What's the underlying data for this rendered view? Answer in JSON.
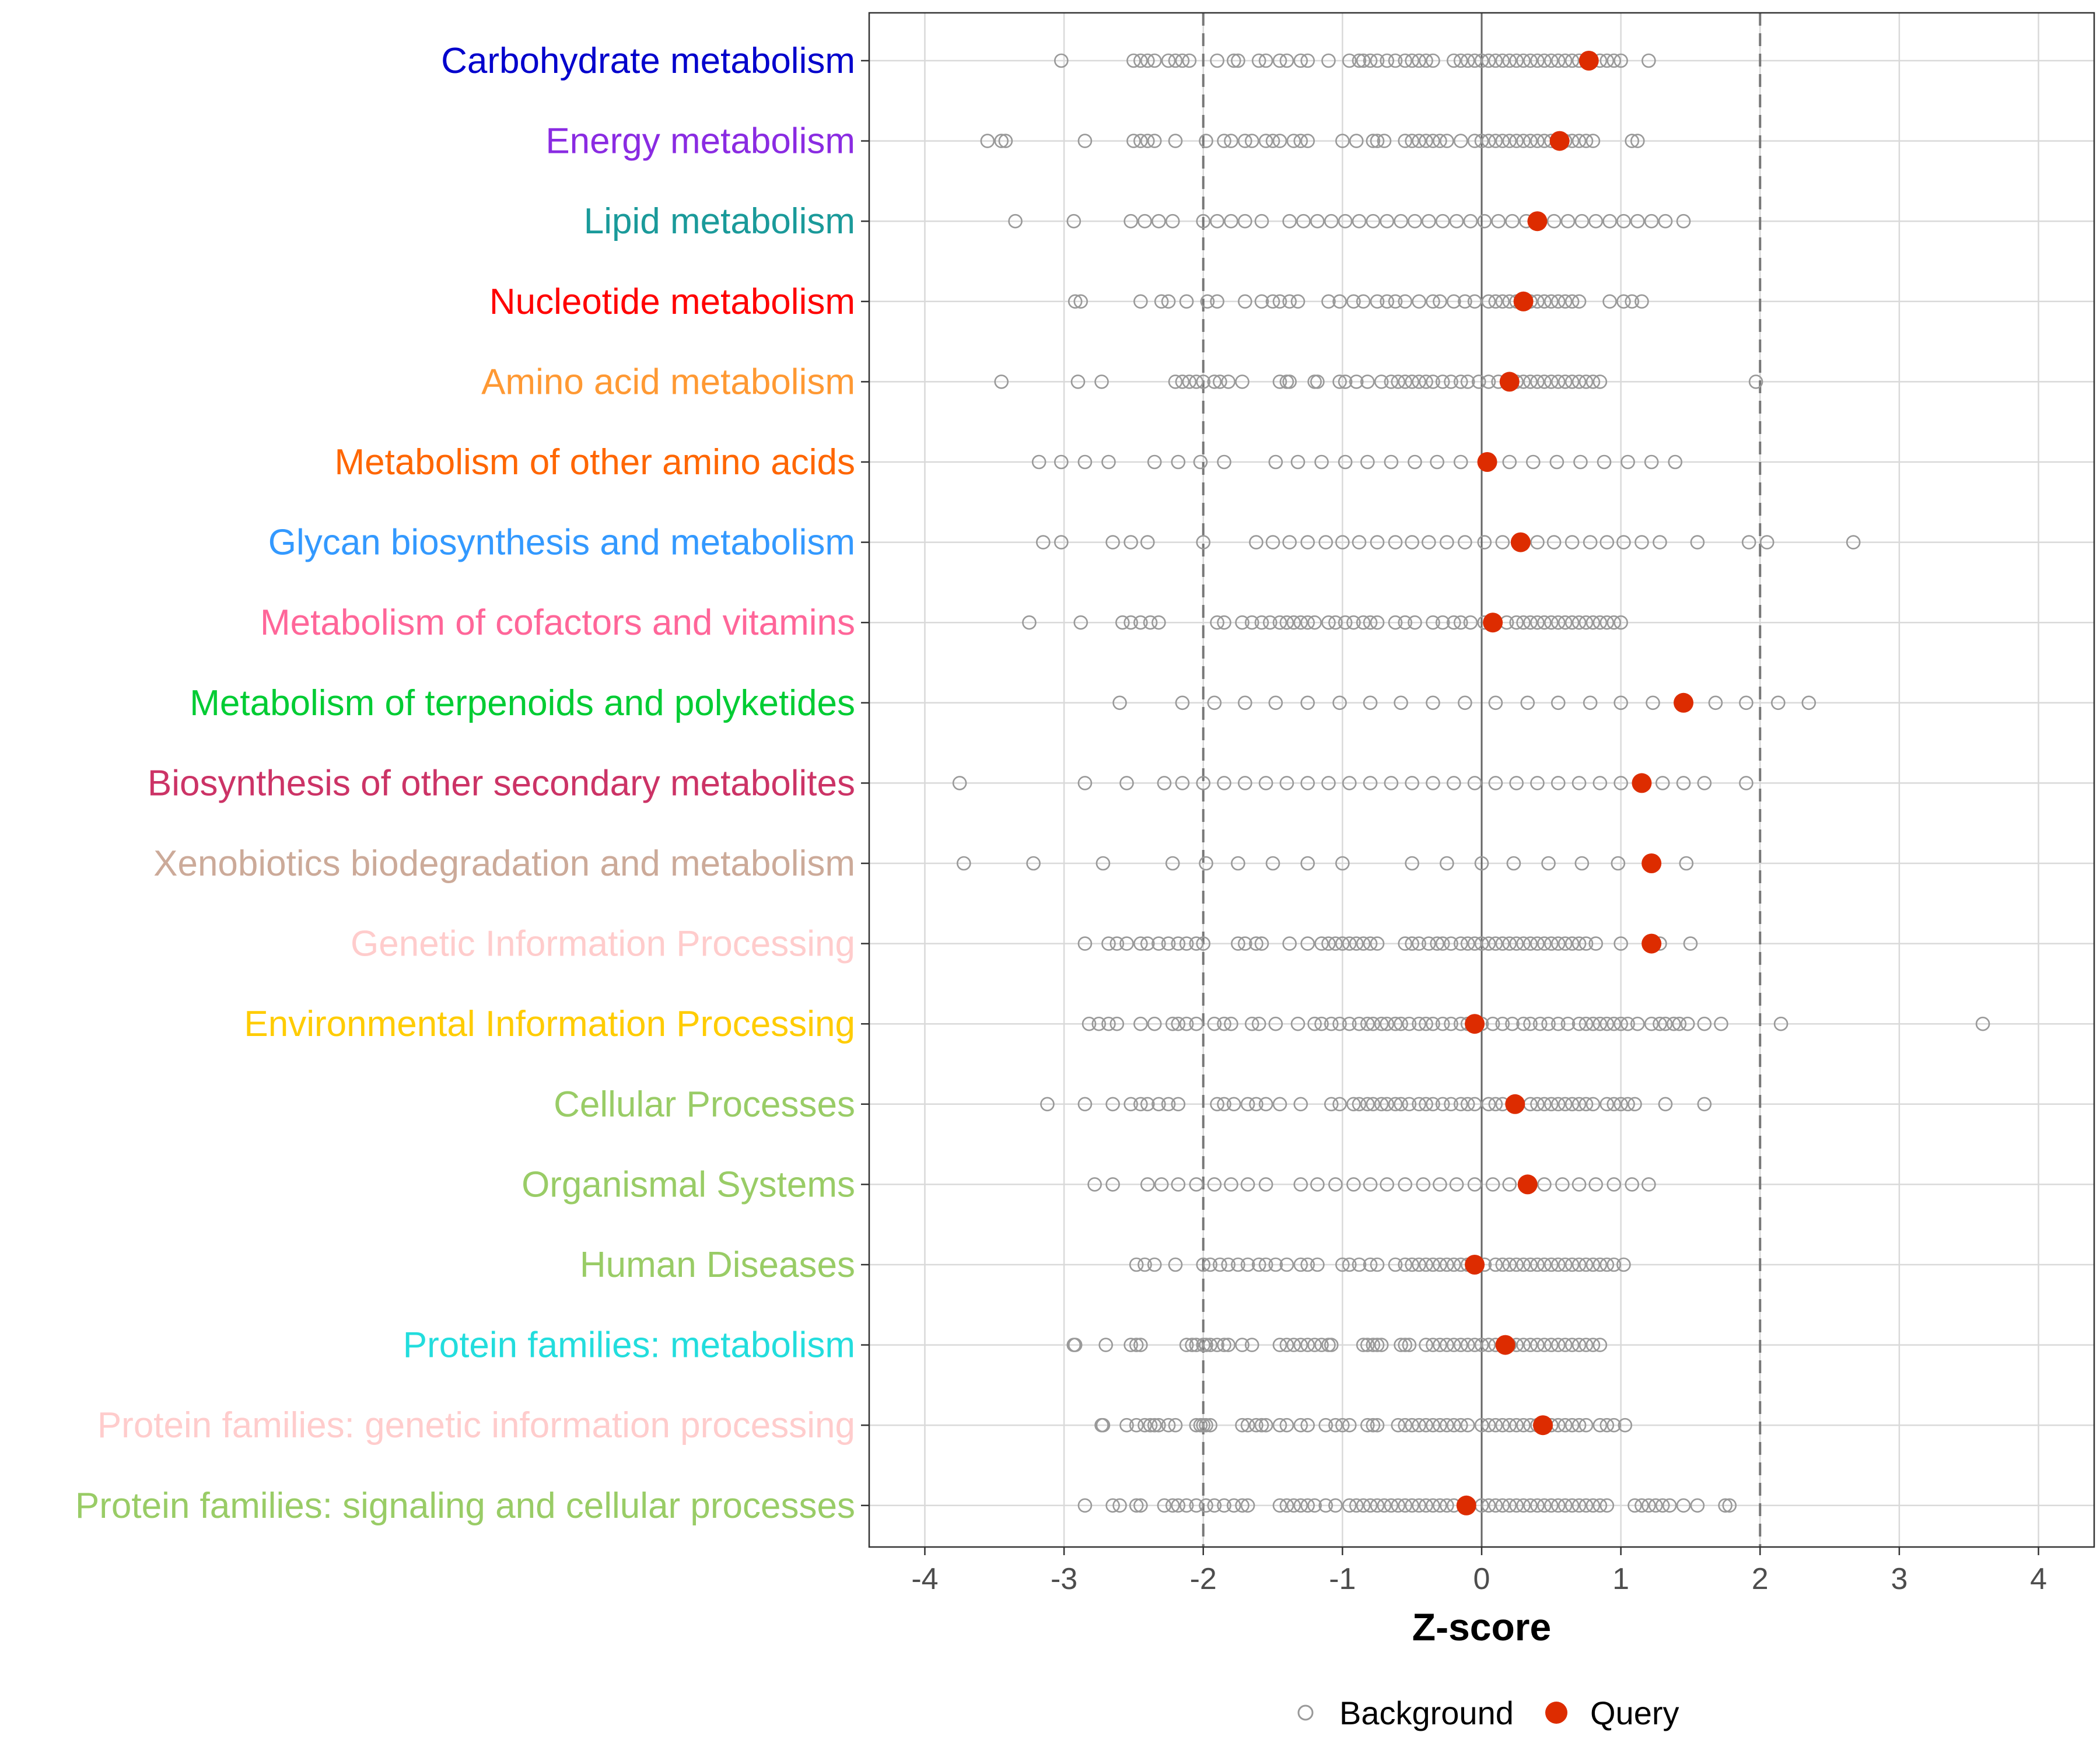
{
  "chart_data": {
    "type": "scatter",
    "title": "",
    "xlabel": "Z-score",
    "ylabel": "",
    "xlim": [
      -4.4,
      4.4
    ],
    "x_ticks": [
      -4,
      -3,
      -2,
      -1,
      0,
      1,
      2,
      3,
      4
    ],
    "x_tick_labels": [
      "-4",
      "-3",
      "-2",
      "-1",
      "0",
      "1",
      "2",
      "3",
      "4"
    ],
    "reference_lines": {
      "dashed": [
        -2,
        2
      ],
      "solid": [
        0
      ]
    },
    "grid": true,
    "legend": {
      "position": "bottom",
      "items": [
        {
          "label": "Background",
          "marker": "open-circle",
          "color": "#999999"
        },
        {
          "label": "Query",
          "marker": "filled-circle",
          "color": "#dd2c00"
        }
      ]
    },
    "categories": [
      {
        "name": "Carbohydrate metabolism",
        "color": "#0000cc",
        "query": 0.77,
        "background": [
          -3.02,
          -2.5,
          -2.45,
          -2.4,
          -2.35,
          -2.25,
          -2.2,
          -2.15,
          -2.1,
          -1.9,
          -1.78,
          -1.75,
          -1.6,
          -1.55,
          -1.45,
          -1.4,
          -1.3,
          -1.25,
          -1.1,
          -0.95,
          -0.88,
          -0.85,
          -0.8,
          -0.75,
          -0.68,
          -0.62,
          -0.55,
          -0.5,
          -0.45,
          -0.4,
          -0.35,
          -0.2,
          -0.15,
          -0.1,
          -0.05,
          0.0,
          0.05,
          0.1,
          0.15,
          0.2,
          0.25,
          0.3,
          0.35,
          0.4,
          0.45,
          0.5,
          0.55,
          0.6,
          0.65,
          0.7,
          0.85,
          0.9,
          0.95,
          1.0,
          1.2
        ]
      },
      {
        "name": "Energy metabolism",
        "color": "#8a2be2",
        "query": 0.56,
        "background": [
          -3.55,
          -3.45,
          -3.42,
          -2.85,
          -2.5,
          -2.45,
          -2.4,
          -2.35,
          -2.2,
          -1.98,
          -1.85,
          -1.8,
          -1.7,
          -1.65,
          -1.55,
          -1.5,
          -1.45,
          -1.35,
          -1.3,
          -1.25,
          -1.0,
          -0.9,
          -0.78,
          -0.75,
          -0.7,
          -0.55,
          -0.5,
          -0.45,
          -0.4,
          -0.35,
          -0.3,
          -0.25,
          -0.15,
          -0.05,
          0.0,
          0.05,
          0.1,
          0.15,
          0.2,
          0.25,
          0.3,
          0.35,
          0.4,
          0.45,
          0.5,
          0.6,
          0.65,
          0.7,
          0.75,
          0.8,
          1.08,
          1.12
        ]
      },
      {
        "name": "Lipid metabolism",
        "color": "#1a9a9a",
        "query": 0.4,
        "background": [
          -3.35,
          -2.93,
          -2.52,
          -2.42,
          -2.32,
          -2.22,
          -2.0,
          -1.9,
          -1.8,
          -1.7,
          -1.58,
          -1.38,
          -1.28,
          -1.18,
          -1.08,
          -0.98,
          -0.88,
          -0.78,
          -0.68,
          -0.58,
          -0.48,
          -0.38,
          -0.28,
          -0.18,
          -0.08,
          0.02,
          0.12,
          0.22,
          0.32,
          0.52,
          0.62,
          0.72,
          0.82,
          0.92,
          1.02,
          1.12,
          1.22,
          1.32,
          1.45
        ]
      },
      {
        "name": "Nucleotide metabolism",
        "color": "#ff0000",
        "query": 0.3,
        "background": [
          -2.92,
          -2.88,
          -2.45,
          -2.3,
          -2.25,
          -2.12,
          -1.97,
          -1.9,
          -1.7,
          -1.58,
          -1.5,
          -1.45,
          -1.38,
          -1.32,
          -1.1,
          -1.02,
          -0.92,
          -0.85,
          -0.75,
          -0.68,
          -0.62,
          -0.55,
          -0.45,
          -0.35,
          -0.3,
          -0.2,
          -0.12,
          -0.05,
          0.05,
          0.1,
          0.15,
          0.2,
          0.25,
          0.35,
          0.4,
          0.45,
          0.5,
          0.55,
          0.6,
          0.65,
          0.7,
          0.92,
          1.02,
          1.08,
          1.15
        ]
      },
      {
        "name": "Amino acid metabolism",
        "color": "#ff9933",
        "query": 0.2,
        "background": [
          -3.45,
          -2.9,
          -2.73,
          -2.2,
          -2.15,
          -2.1,
          -2.05,
          -2.0,
          -1.92,
          -1.88,
          -1.82,
          -1.72,
          -1.45,
          -1.4,
          -1.38,
          -1.2,
          -1.18,
          -1.02,
          -0.98,
          -0.9,
          -0.82,
          -0.72,
          -0.65,
          -0.6,
          -0.55,
          -0.5,
          -0.45,
          -0.4,
          -0.35,
          -0.28,
          -0.22,
          -0.15,
          -0.1,
          -0.02,
          0.05,
          0.12,
          0.25,
          0.3,
          0.35,
          0.4,
          0.45,
          0.5,
          0.55,
          0.6,
          0.65,
          0.7,
          0.75,
          0.8,
          0.85,
          1.97
        ]
      },
      {
        "name": "Metabolism of other amino acids",
        "color": "#ff6600",
        "query": 0.04,
        "background": [
          -3.18,
          -3.02,
          -2.85,
          -2.68,
          -2.35,
          -2.18,
          -2.02,
          -1.85,
          -1.48,
          -1.32,
          -1.15,
          -0.98,
          -0.82,
          -0.65,
          -0.48,
          -0.32,
          -0.15,
          0.2,
          0.37,
          0.54,
          0.71,
          0.88,
          1.05,
          1.22,
          1.39
        ]
      },
      {
        "name": "Glycan biosynthesis and metabolism",
        "color": "#3399ff",
        "query": 0.28,
        "background": [
          -3.15,
          -3.02,
          -2.65,
          -2.52,
          -2.4,
          -2.0,
          -1.62,
          -1.5,
          -1.38,
          -1.25,
          -1.12,
          -1.0,
          -0.88,
          -0.75,
          -0.62,
          -0.5,
          -0.38,
          -0.25,
          -0.12,
          0.02,
          0.15,
          0.4,
          0.52,
          0.65,
          0.78,
          0.9,
          1.02,
          1.15,
          1.28,
          1.55,
          1.92,
          2.05,
          2.67
        ]
      },
      {
        "name": "Metabolism of cofactors and vitamins",
        "color": "#ff6699",
        "query": 0.08,
        "background": [
          -3.25,
          -2.88,
          -2.58,
          -2.52,
          -2.45,
          -2.38,
          -2.32,
          -1.9,
          -1.85,
          -1.72,
          -1.65,
          -1.58,
          -1.52,
          -1.45,
          -1.4,
          -1.35,
          -1.3,
          -1.25,
          -1.2,
          -1.1,
          -1.05,
          -0.98,
          -0.92,
          -0.85,
          -0.8,
          -0.75,
          -0.62,
          -0.55,
          -0.48,
          -0.35,
          -0.28,
          -0.2,
          -0.15,
          -0.08,
          0.02,
          0.18,
          0.25,
          0.3,
          0.35,
          0.4,
          0.45,
          0.5,
          0.55,
          0.6,
          0.65,
          0.7,
          0.75,
          0.8,
          0.85,
          0.9,
          0.95,
          1.0
        ]
      },
      {
        "name": "Metabolism of terpenoids and polyketides",
        "color": "#00cc33",
        "query": 1.45,
        "background": [
          -2.6,
          -2.15,
          -1.92,
          -1.7,
          -1.48,
          -1.25,
          -1.02,
          -0.8,
          -0.58,
          -0.35,
          -0.12,
          0.1,
          0.33,
          0.55,
          0.78,
          1.0,
          1.23,
          1.68,
          1.9,
          2.13,
          2.35
        ]
      },
      {
        "name": "Biosynthesis of other secondary metabolites",
        "color": "#cc3366",
        "query": 1.15,
        "background": [
          -3.75,
          -2.85,
          -2.55,
          -2.28,
          -2.15,
          -2.0,
          -1.85,
          -1.7,
          -1.55,
          -1.4,
          -1.25,
          -1.1,
          -0.95,
          -0.8,
          -0.65,
          -0.5,
          -0.35,
          -0.2,
          -0.05,
          0.1,
          0.25,
          0.4,
          0.55,
          0.7,
          0.85,
          1.0,
          1.3,
          1.45,
          1.6,
          1.9
        ]
      },
      {
        "name": "Xenobiotics biodegradation and metabolism",
        "color": "#ccaa99",
        "query": 1.22,
        "background": [
          -3.72,
          -3.22,
          -2.72,
          -2.22,
          -1.98,
          -1.75,
          -1.5,
          -1.25,
          -1.0,
          -0.5,
          -0.25,
          0.0,
          0.23,
          0.48,
          0.72,
          0.98,
          1.47
        ]
      },
      {
        "name": "Genetic Information Processing",
        "color": "#ffcccc",
        "query": 1.22,
        "background": [
          -2.85,
          -2.68,
          -2.62,
          -2.55,
          -2.45,
          -2.4,
          -2.32,
          -2.25,
          -2.18,
          -2.12,
          -2.05,
          -2.0,
          -1.75,
          -1.7,
          -1.62,
          -1.58,
          -1.38,
          -1.25,
          -1.15,
          -1.1,
          -1.05,
          -1.0,
          -0.95,
          -0.9,
          -0.85,
          -0.8,
          -0.75,
          -0.55,
          -0.5,
          -0.45,
          -0.38,
          -0.32,
          -0.28,
          -0.22,
          -0.15,
          -0.1,
          -0.05,
          0.0,
          0.05,
          0.1,
          0.15,
          0.2,
          0.25,
          0.3,
          0.35,
          0.4,
          0.45,
          0.5,
          0.55,
          0.6,
          0.65,
          0.7,
          0.75,
          0.82,
          1.0,
          1.28,
          1.5
        ]
      },
      {
        "name": "Environmental Information Processing",
        "color": "#ffcc00",
        "query": -0.05,
        "background": [
          -2.82,
          -2.75,
          -2.68,
          -2.62,
          -2.45,
          -2.35,
          -2.22,
          -2.18,
          -2.12,
          -2.05,
          -1.92,
          -1.85,
          -1.8,
          -1.65,
          -1.6,
          -1.48,
          -1.32,
          -1.2,
          -1.15,
          -1.08,
          -1.02,
          -0.95,
          -0.88,
          -0.82,
          -0.78,
          -0.72,
          -0.68,
          -0.62,
          -0.58,
          -0.52,
          -0.45,
          -0.4,
          -0.35,
          -0.28,
          -0.22,
          -0.15,
          -0.1,
          0.0,
          0.08,
          0.15,
          0.22,
          0.3,
          0.35,
          0.42,
          0.48,
          0.55,
          0.62,
          0.7,
          0.75,
          0.8,
          0.85,
          0.9,
          0.95,
          1.0,
          1.05,
          1.12,
          1.22,
          1.28,
          1.32,
          1.38,
          1.42,
          1.48,
          1.6,
          1.72,
          2.15,
          3.6
        ]
      },
      {
        "name": "Cellular Processes",
        "color": "#99cc66",
        "query": 0.24,
        "background": [
          -3.12,
          -2.85,
          -2.65,
          -2.52,
          -2.45,
          -2.4,
          -2.32,
          -2.25,
          -2.18,
          -1.9,
          -1.85,
          -1.78,
          -1.68,
          -1.62,
          -1.55,
          -1.45,
          -1.3,
          -1.08,
          -1.02,
          -0.92,
          -0.88,
          -0.82,
          -0.78,
          -0.72,
          -0.68,
          -0.62,
          -0.58,
          -0.52,
          -0.45,
          -0.4,
          -0.35,
          -0.28,
          -0.22,
          -0.15,
          -0.1,
          -0.05,
          0.05,
          0.1,
          0.15,
          0.35,
          0.4,
          0.45,
          0.5,
          0.55,
          0.6,
          0.65,
          0.7,
          0.75,
          0.8,
          0.9,
          0.95,
          1.0,
          1.05,
          1.1,
          1.32,
          1.6
        ]
      },
      {
        "name": "Organismal Systems",
        "color": "#99cc66",
        "query": 0.33,
        "background": [
          -2.78,
          -2.65,
          -2.4,
          -2.3,
          -2.18,
          -2.05,
          -1.92,
          -1.8,
          -1.68,
          -1.55,
          -1.3,
          -1.18,
          -1.05,
          -0.92,
          -0.8,
          -0.68,
          -0.55,
          -0.42,
          -0.3,
          -0.18,
          -0.05,
          0.08,
          0.2,
          0.45,
          0.58,
          0.7,
          0.82,
          0.95,
          1.08,
          1.2
        ]
      },
      {
        "name": "Human Diseases",
        "color": "#99cc66",
        "query": -0.05,
        "background": [
          -2.48,
          -2.42,
          -2.35,
          -2.2,
          -2.0,
          -1.95,
          -1.88,
          -1.82,
          -1.75,
          -1.68,
          -1.6,
          -1.55,
          -1.48,
          -1.4,
          -1.3,
          -1.25,
          -1.18,
          -1.0,
          -0.95,
          -0.88,
          -0.8,
          -0.75,
          -0.62,
          -0.55,
          -0.5,
          -0.45,
          -0.4,
          -0.35,
          -0.3,
          -0.25,
          -0.2,
          -0.15,
          -0.1,
          0.02,
          0.1,
          0.15,
          0.2,
          0.25,
          0.3,
          0.35,
          0.4,
          0.45,
          0.5,
          0.55,
          0.6,
          0.65,
          0.7,
          0.75,
          0.8,
          0.85,
          0.9,
          0.95,
          1.02
        ]
      },
      {
        "name": "Protein families: metabolism",
        "color": "#22dddd",
        "query": 0.17,
        "background": [
          -2.93,
          -2.92,
          -2.7,
          -2.52,
          -2.48,
          -2.45,
          -2.12,
          -2.08,
          -2.05,
          -2.0,
          -1.98,
          -1.95,
          -1.9,
          -1.85,
          -1.82,
          -1.72,
          -1.65,
          -1.45,
          -1.4,
          -1.35,
          -1.3,
          -1.25,
          -1.2,
          -1.15,
          -1.1,
          -1.08,
          -0.85,
          -0.82,
          -0.78,
          -0.75,
          -0.72,
          -0.58,
          -0.55,
          -0.52,
          -0.4,
          -0.35,
          -0.3,
          -0.25,
          -0.2,
          -0.15,
          -0.1,
          -0.05,
          0.0,
          0.05,
          0.1,
          0.2,
          0.25,
          0.3,
          0.35,
          0.4,
          0.45,
          0.5,
          0.55,
          0.6,
          0.65,
          0.7,
          0.75,
          0.8,
          0.85
        ]
      },
      {
        "name": "Protein families: genetic information processing",
        "color": "#ffcccc",
        "query": 0.44,
        "background": [
          -2.73,
          -2.72,
          -2.55,
          -2.48,
          -2.42,
          -2.38,
          -2.35,
          -2.32,
          -2.25,
          -2.2,
          -2.05,
          -2.02,
          -2.0,
          -1.98,
          -1.95,
          -1.72,
          -1.68,
          -1.62,
          -1.58,
          -1.55,
          -1.45,
          -1.4,
          -1.3,
          -1.25,
          -1.12,
          -1.05,
          -1.0,
          -0.95,
          -0.82,
          -0.78,
          -0.75,
          -0.6,
          -0.55,
          -0.5,
          -0.45,
          -0.4,
          -0.35,
          -0.3,
          -0.25,
          -0.2,
          -0.15,
          -0.1,
          0.0,
          0.05,
          0.1,
          0.15,
          0.2,
          0.25,
          0.3,
          0.35,
          0.4,
          0.5,
          0.55,
          0.6,
          0.65,
          0.7,
          0.75,
          0.85,
          0.9,
          0.95,
          1.03
        ]
      },
      {
        "name": "Protein families: signaling and cellular processes",
        "color": "#99cc66",
        "query": -0.11,
        "background": [
          -2.85,
          -2.65,
          -2.6,
          -2.48,
          -2.45,
          -2.28,
          -2.22,
          -2.18,
          -2.12,
          -2.05,
          -1.98,
          -1.92,
          -1.85,
          -1.78,
          -1.72,
          -1.68,
          -1.45,
          -1.4,
          -1.35,
          -1.3,
          -1.25,
          -1.2,
          -1.12,
          -1.05,
          -0.95,
          -0.9,
          -0.85,
          -0.8,
          -0.75,
          -0.7,
          -0.65,
          -0.6,
          -0.55,
          -0.5,
          -0.45,
          -0.4,
          -0.35,
          -0.3,
          -0.25,
          -0.2,
          0.0,
          0.05,
          0.1,
          0.15,
          0.2,
          0.25,
          0.3,
          0.35,
          0.4,
          0.45,
          0.5,
          0.55,
          0.6,
          0.65,
          0.7,
          0.75,
          0.8,
          0.85,
          0.9,
          1.1,
          1.15,
          1.2,
          1.25,
          1.3,
          1.35,
          1.45,
          1.55,
          1.75,
          1.78
        ]
      }
    ]
  }
}
